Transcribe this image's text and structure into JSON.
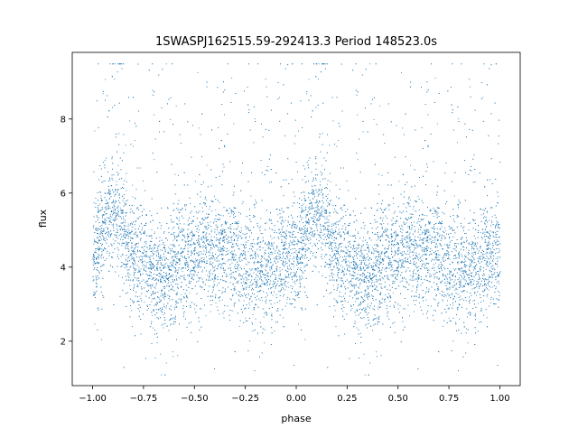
{
  "chart_data": {
    "type": "scatter",
    "title": "1SWASPJ162515.59-292413.3 Period 148523.0s",
    "xlabel": "phase",
    "ylabel": "flux",
    "xlim": [
      -1.1,
      1.1
    ],
    "ylim": [
      0.8,
      9.8
    ],
    "xticks": [
      -1.0,
      -0.75,
      -0.5,
      -0.25,
      0.0,
      0.25,
      0.5,
      0.75,
      1.0
    ],
    "xtick_labels": [
      "−1.00",
      "−0.75",
      "−0.50",
      "−0.25",
      "0.00",
      "0.25",
      "0.50",
      "0.75",
      "1.00"
    ],
    "yticks": [
      2,
      4,
      6,
      8
    ],
    "ytick_labels": [
      "2",
      "4",
      "6",
      "8"
    ],
    "grid": false,
    "point_color": "#1f77b4",
    "profile": {
      "description_points": [
        [
          0.0,
          4.2
        ],
        [
          0.05,
          4.9
        ],
        [
          0.1,
          5.6
        ],
        [
          0.15,
          5.0
        ],
        [
          0.2,
          4.3
        ],
        [
          0.25,
          4.3
        ],
        [
          0.3,
          3.7
        ],
        [
          0.35,
          3.6
        ],
        [
          0.4,
          4.0
        ],
        [
          0.45,
          4.2
        ],
        [
          0.5,
          4.4
        ],
        [
          0.55,
          4.5
        ],
        [
          0.6,
          4.3
        ],
        [
          0.65,
          4.6
        ],
        [
          0.7,
          4.2
        ],
        [
          0.75,
          4.1
        ],
        [
          0.8,
          3.9
        ],
        [
          0.85,
          3.8
        ],
        [
          0.9,
          4.1
        ],
        [
          0.95,
          4.5
        ],
        [
          1.0,
          4.2
        ]
      ],
      "spread": 0.75,
      "n_points": 6000,
      "mirrored_phase_range": [
        -1.0,
        1.0
      ]
    }
  }
}
